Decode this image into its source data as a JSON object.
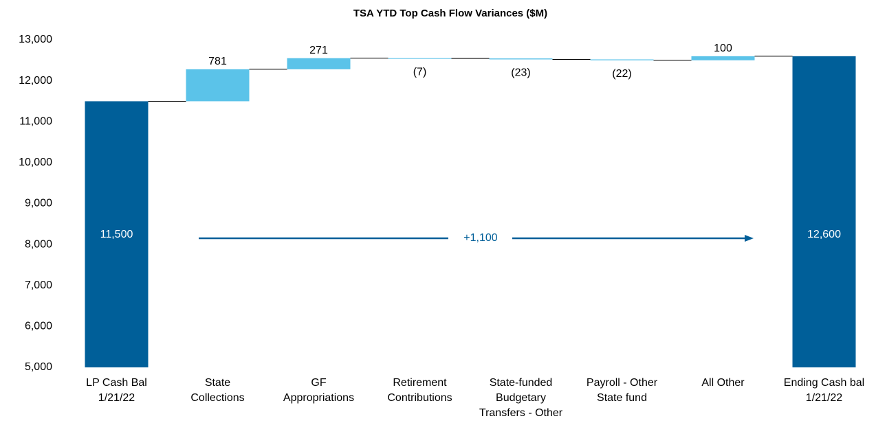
{
  "chart_data": {
    "type": "waterfall",
    "title": "TSA YTD Top Cash Flow Variances ($M)",
    "categories": [
      [
        "LP Cash Bal",
        "1/21/22"
      ],
      [
        "State",
        "Collections"
      ],
      [
        "GF",
        "Appropriations"
      ],
      [
        "Retirement",
        "Contributions"
      ],
      [
        "State-funded",
        "Budgetary",
        "Transfers - Other"
      ],
      [
        "Payroll - Other",
        "State fund"
      ],
      [
        "All Other"
      ],
      [
        "Ending Cash bal",
        "1/21/22"
      ]
    ],
    "measure": [
      "total",
      "delta",
      "delta",
      "delta",
      "delta",
      "delta",
      "delta",
      "total"
    ],
    "values": [
      11500,
      781,
      271,
      -7,
      -23,
      -22,
      100,
      12600
    ],
    "value_labels": [
      "11,500",
      "781",
      "271",
      "(7)",
      "(23)",
      "(22)",
      "100",
      "12,600"
    ],
    "total_color": "#005f99",
    "delta_color": "#5bc3e9",
    "ylim": [
      5000,
      13000
    ],
    "yticks": [
      {
        "value": 5000,
        "label": "5,000"
      },
      {
        "value": 6000,
        "label": "6,000"
      },
      {
        "value": 7000,
        "label": "7,000"
      },
      {
        "value": 8000,
        "label": "8,000"
      },
      {
        "value": 9000,
        "label": "9,000"
      },
      {
        "value": 10000,
        "label": "10,000"
      },
      {
        "value": 11000,
        "label": "11,000"
      },
      {
        "value": 12000,
        "label": "12,000"
      },
      {
        "value": 13000,
        "label": "13,000"
      }
    ],
    "annotation": "+1,100",
    "annotation_color": "#005f99"
  }
}
